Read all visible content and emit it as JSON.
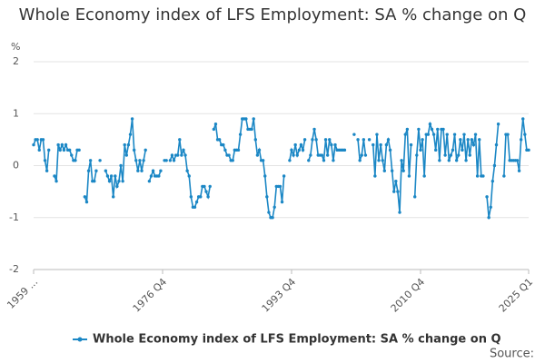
{
  "chart_data": {
    "type": "line",
    "title": "Whole Economy index of LFS Employment: SA % change on Q",
    "y_label": "%",
    "source_label": "Source:",
    "categories": [
      "1959 ...",
      null,
      null,
      null,
      null,
      null,
      null,
      null,
      null,
      null,
      null,
      null,
      null,
      null,
      null,
      null,
      null,
      null,
      null,
      null,
      null,
      null,
      null,
      null,
      null,
      null,
      null,
      null,
      null,
      null,
      null,
      null,
      null,
      null,
      null,
      null,
      null,
      null,
      null,
      null,
      null,
      null,
      null,
      null,
      null,
      null,
      null,
      null,
      null,
      null,
      null,
      null,
      null,
      null,
      null,
      null,
      null,
      null,
      null,
      null,
      null,
      null,
      null,
      null,
      null,
      null,
      null,
      null,
      "1976 Q4",
      null,
      null,
      null,
      null,
      null,
      null,
      null,
      null,
      null,
      null,
      null,
      null,
      null,
      null,
      null,
      null,
      null,
      null,
      null,
      null,
      null,
      null,
      null,
      null,
      null,
      null,
      null,
      null,
      null,
      null,
      null,
      null,
      null,
      null,
      null,
      null,
      null,
      null,
      null,
      null,
      null,
      null,
      null,
      null,
      null,
      null,
      null,
      null,
      null,
      null,
      null,
      null,
      null,
      null,
      null,
      null,
      null,
      null,
      null,
      null,
      null,
      null,
      null,
      null,
      null,
      null,
      null,
      "1993 Q4",
      null,
      null,
      null,
      null,
      null,
      null,
      null,
      null,
      null,
      null,
      null,
      null,
      null,
      null,
      null,
      null,
      null,
      null,
      null,
      null,
      null,
      null,
      null,
      null,
      null,
      null,
      null,
      null,
      null,
      null,
      null,
      null,
      null,
      null,
      null,
      null,
      null,
      null,
      null,
      null,
      null,
      null,
      null,
      null,
      null,
      null,
      null,
      null,
      null,
      null,
      null,
      null,
      null,
      null,
      null,
      null,
      null,
      null,
      null,
      null,
      null,
      null,
      null,
      null,
      null,
      null,
      null,
      "2010 Q4",
      null,
      null,
      null,
      null,
      null,
      null,
      null,
      null,
      null,
      null,
      null,
      null,
      null,
      null,
      null,
      null,
      null,
      null,
      null,
      null,
      null,
      null,
      null,
      null,
      null,
      null,
      null,
      null,
      null,
      null,
      null,
      null,
      null,
      null,
      null,
      null,
      null,
      null,
      null,
      null,
      null,
      null,
      null,
      null,
      null,
      null,
      null,
      null,
      null,
      null,
      null,
      null,
      null,
      null,
      null,
      null,
      "2025 Q1"
    ],
    "series": [
      {
        "name": "Whole Economy index of LFS Employment: SA % change on Q",
        "color": "#1b87c5",
        "values": [
          0.4,
          0.5,
          0.5,
          0.3,
          0.5,
          0.5,
          0.1,
          -0.1,
          0.3,
          null,
          null,
          -0.2,
          -0.3,
          0.4,
          0.3,
          0.4,
          0.3,
          0.4,
          0.3,
          0.3,
          0.2,
          0.1,
          0.1,
          0.3,
          0.3,
          null,
          null,
          -0.6,
          -0.7,
          -0.1,
          0.1,
          -0.3,
          -0.3,
          -0.1,
          null,
          0.1,
          null,
          null,
          -0.1,
          -0.2,
          -0.3,
          -0.2,
          -0.6,
          -0.2,
          -0.4,
          -0.3,
          0.0,
          -0.3,
          0.4,
          0.2,
          0.4,
          0.6,
          0.9,
          0.3,
          0.1,
          -0.1,
          0.1,
          -0.1,
          0.1,
          0.3,
          null,
          -0.3,
          -0.2,
          -0.1,
          -0.2,
          -0.2,
          -0.2,
          -0.1,
          null,
          0.1,
          0.1,
          null,
          0.1,
          0.2,
          0.1,
          0.2,
          0.2,
          0.5,
          0.2,
          0.3,
          0.2,
          -0.1,
          -0.2,
          -0.6,
          -0.8,
          -0.8,
          -0.7,
          -0.6,
          -0.6,
          -0.4,
          -0.4,
          -0.5,
          -0.6,
          -0.4,
          null,
          0.7,
          0.8,
          0.5,
          0.5,
          0.4,
          0.4,
          0.3,
          0.2,
          0.2,
          0.1,
          0.1,
          0.3,
          0.3,
          0.3,
          0.6,
          0.9,
          0.9,
          0.9,
          0.7,
          0.7,
          0.7,
          0.9,
          0.5,
          0.2,
          0.3,
          0.1,
          0.1,
          -0.2,
          -0.6,
          -0.9,
          -1.0,
          -1.0,
          -0.8,
          -0.4,
          -0.4,
          -0.4,
          -0.7,
          -0.2,
          null,
          null,
          0.1,
          0.3,
          0.2,
          0.4,
          0.2,
          0.3,
          0.4,
          0.3,
          0.5,
          null,
          0.1,
          0.2,
          0.5,
          0.7,
          0.5,
          0.2,
          0.2,
          0.2,
          0.1,
          0.5,
          0.2,
          0.5,
          0.4,
          0.1,
          0.4,
          0.3,
          0.3,
          0.3,
          0.3,
          0.3,
          null,
          null,
          null,
          null,
          0.6,
          null,
          0.5,
          0.1,
          0.2,
          0.5,
          0.2,
          null,
          0.5,
          null,
          0.4,
          -0.2,
          0.6,
          0.1,
          0.4,
          0.1,
          -0.1,
          0.4,
          0.5,
          0.3,
          -0.1,
          -0.5,
          -0.3,
          -0.5,
          -0.9,
          0.1,
          -0.1,
          0.6,
          0.7,
          -0.2,
          0.4,
          null,
          -0.6,
          0.2,
          0.7,
          0.3,
          0.5,
          -0.2,
          0.6,
          0.6,
          0.8,
          0.7,
          0.6,
          0.3,
          0.7,
          0.1,
          0.7,
          0.7,
          0.2,
          0.6,
          0.1,
          0.2,
          0.3,
          0.6,
          0.1,
          0.2,
          0.5,
          0.3,
          0.6,
          0.1,
          0.5,
          0.2,
          0.5,
          0.4,
          0.6,
          -0.2,
          0.5,
          -0.2,
          -0.2,
          null,
          -0.6,
          -1.0,
          -0.8,
          -0.3,
          0.0,
          0.4,
          0.8,
          null,
          null,
          -0.2,
          0.6,
          0.6,
          0.1,
          0.1,
          0.1,
          0.1,
          0.1,
          -0.1,
          0.5,
          0.9,
          0.6,
          0.3,
          0.3
        ]
      }
    ],
    "ylim": [
      -2,
      2
    ],
    "yticks": [
      -2,
      -1,
      0,
      1,
      2
    ],
    "grid": true,
    "legend": "bottom"
  }
}
